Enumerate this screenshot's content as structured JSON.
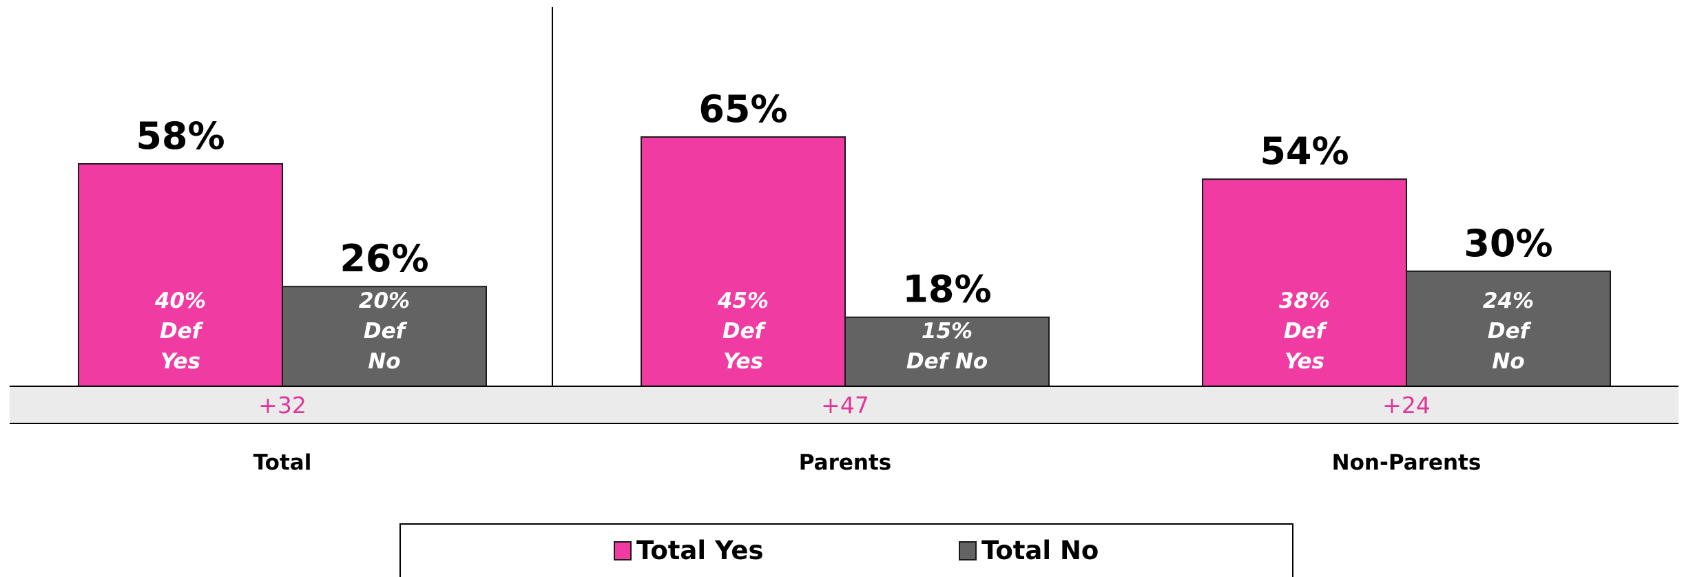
{
  "chart_data": {
    "type": "bar",
    "categories": [
      "Total",
      "Parents",
      "Non-Parents"
    ],
    "series": [
      {
        "name": "Total Yes",
        "color": "#f03ba3",
        "values": [
          58,
          65,
          54
        ],
        "value_labels": [
          "58%",
          "65%",
          "54%"
        ],
        "inner_labels": [
          [
            "40%",
            "Def",
            "Yes"
          ],
          [
            "45%",
            "Def",
            "Yes"
          ],
          [
            "38%",
            "Def",
            "Yes"
          ]
        ]
      },
      {
        "name": "Total No",
        "color": "#636363",
        "values": [
          26,
          18,
          30
        ],
        "value_labels": [
          "26%",
          "18%",
          "30%"
        ],
        "inner_labels": [
          [
            "20%",
            "Def",
            "No"
          ],
          [
            "15%",
            "Def No"
          ],
          [
            "24%",
            "Def",
            "No"
          ]
        ]
      }
    ],
    "differences": [
      "+32",
      "+47",
      "+24"
    ],
    "difference_color": "#e0369a",
    "ylim": [
      0,
      100
    ],
    "legend_position": "bottom-center",
    "grid": false
  }
}
